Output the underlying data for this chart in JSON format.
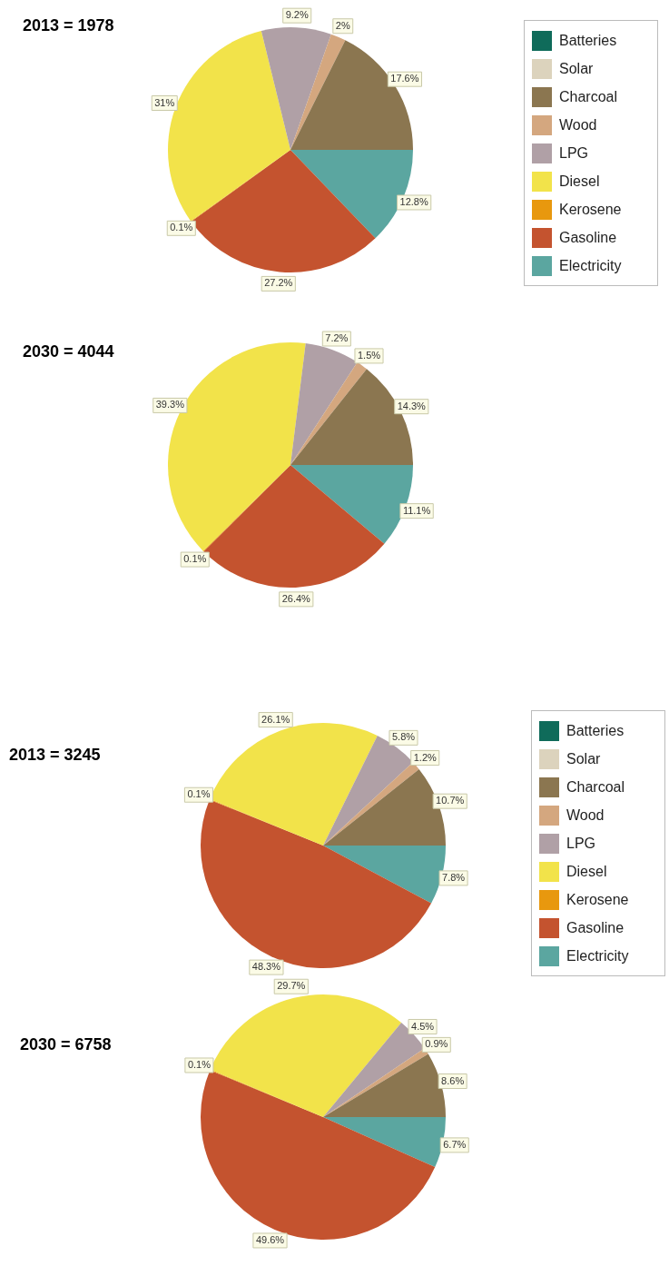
{
  "chart_data": [
    {
      "type": "pie",
      "title": "2013 = 1978",
      "legend": "right",
      "categories": [
        "Batteries",
        "Solar",
        "Charcoal",
        "Wood",
        "LPG",
        "Diesel",
        "Kerosene",
        "Gasoline",
        "Electricity"
      ],
      "values": [
        0,
        0,
        17.6,
        2,
        9.2,
        31,
        0.1,
        27.2,
        12.8
      ],
      "value_labels": [
        null,
        null,
        "17.6%",
        "2%",
        "9.2%",
        "31%",
        "0.1%",
        "27.2%",
        "12.8%"
      ],
      "colors": [
        "#0f6b5a",
        "#dcd3bd",
        "#8b7650",
        "#d4a77f",
        "#b0a0a6",
        "#f2e34a",
        "#e8980e",
        "#c4532f",
        "#5ba6a0"
      ]
    },
    {
      "type": "pie",
      "title": "2030 = 4044",
      "categories": [
        null,
        null,
        null,
        null,
        null,
        null,
        null,
        null,
        null
      ],
      "values": [
        0,
        0,
        14.3,
        1.5,
        7.2,
        39.3,
        0.1,
        26.4,
        11.1
      ],
      "value_labels": [
        null,
        null,
        "14.3%",
        "1.5%",
        "7.2%",
        "39.3%",
        "0.1%",
        "26.4%",
        "11.1%"
      ],
      "colors": [
        "#0f6b5a",
        "#dcd3bd",
        "#8b7650",
        "#d4a77f",
        "#b0a0a6",
        "#f2e34a",
        "#e8980e",
        "#c4532f",
        "#5ba6a0"
      ]
    },
    {
      "type": "pie",
      "title": "2013 = 3245",
      "legend": "right",
      "categories": [
        "Batteries",
        "Solar",
        "Charcoal",
        "Wood",
        "LPG",
        "Diesel",
        "Kerosene",
        "Gasoline",
        "Electricity"
      ],
      "values": [
        0,
        0,
        10.7,
        1.2,
        5.8,
        26.1,
        0.1,
        48.3,
        7.8
      ],
      "value_labels": [
        null,
        null,
        "10.7%",
        "1.2%",
        "5.8%",
        "26.1%",
        "0.1%",
        "48.3%",
        "7.8%"
      ],
      "colors": [
        "#0f6b5a",
        "#dcd3bd",
        "#8b7650",
        "#d4a77f",
        "#b0a0a6",
        "#f2e34a",
        "#e8980e",
        "#c4532f",
        "#5ba6a0"
      ]
    },
    {
      "type": "pie",
      "title": "2030 = 6758",
      "categories": [
        null,
        null,
        null,
        null,
        null,
        null,
        null,
        null,
        null
      ],
      "values": [
        0,
        0,
        8.6,
        0.9,
        4.5,
        29.7,
        0.1,
        49.6,
        6.7
      ],
      "value_labels": [
        null,
        null,
        "8.6%",
        "0.9%",
        "4.5%",
        "29.7%",
        "0.1%",
        "49.6%",
        "6.7%"
      ],
      "colors": [
        "#0f6b5a",
        "#dcd3bd",
        "#8b7650",
        "#d4a77f",
        "#b0a0a6",
        "#f2e34a",
        "#e8980e",
        "#c4532f",
        "#5ba6a0"
      ]
    }
  ]
}
